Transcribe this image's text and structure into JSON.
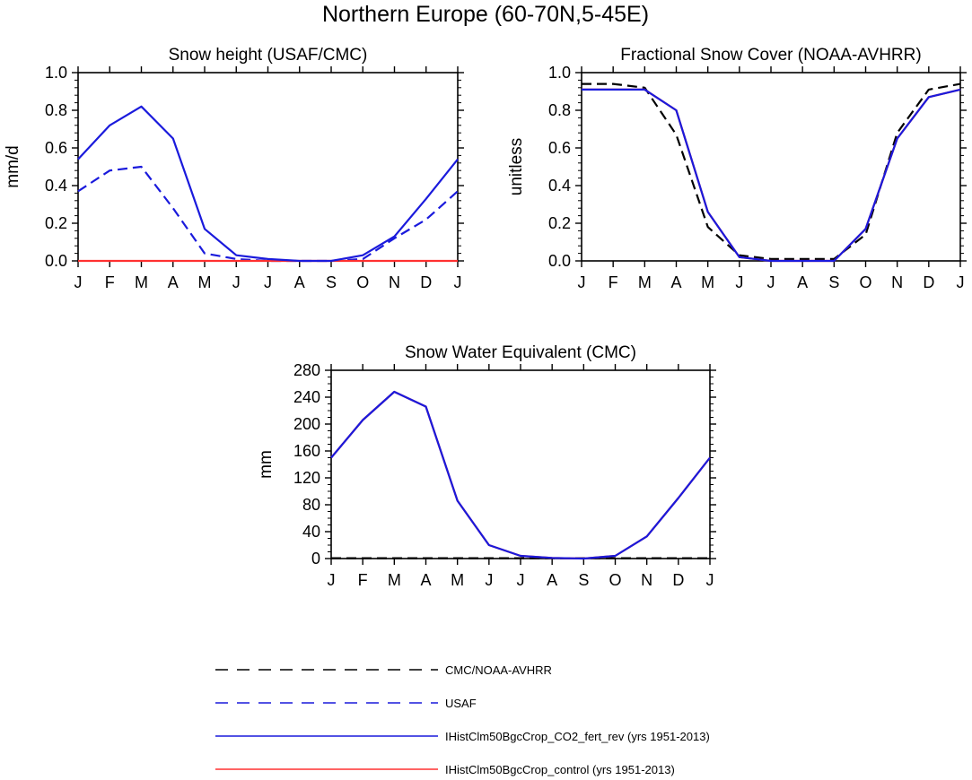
{
  "figure": {
    "title": "Northern Europe (60-70N,5-45E)"
  },
  "series_styles": [
    {
      "name": "CMC/NOAA-AVHRR",
      "color": "#000000",
      "dash": true
    },
    {
      "name": "USAF",
      "color": "#1a1adc",
      "dash": true
    },
    {
      "name": "IHistClm50BgcCrop_CO2_fert_rev (yrs 1951-2013)",
      "color": "#1a1adc",
      "dash": false
    },
    {
      "name": "IHistClm50BgcCrop_control (yrs 1951-2013)",
      "color": "#ff3030",
      "dash": false
    }
  ],
  "chart_data": [
    {
      "type": "line",
      "title": "Snow height (USAF/CMC)",
      "xlabel": "",
      "ylabel": "mm/d",
      "categories": [
        "J",
        "F",
        "M",
        "A",
        "M",
        "J",
        "J",
        "A",
        "S",
        "O",
        "N",
        "D",
        "J"
      ],
      "ylim": [
        0,
        1.0
      ],
      "yticks": [
        "0.0",
        "0.2",
        "0.4",
        "0.6",
        "0.8",
        "1.0"
      ],
      "yminor_count": 4,
      "series": [
        {
          "style": 1,
          "values": [
            0.37,
            0.48,
            0.5,
            0.28,
            0.04,
            0.01,
            0.0,
            0.0,
            0.0,
            0.01,
            0.12,
            0.22,
            0.37
          ]
        },
        {
          "style": 3,
          "values": [
            0.0,
            0.0,
            0.0,
            0.0,
            0.0,
            0.0,
            0.0,
            0.0,
            0.0,
            0.0,
            0.0,
            0.0,
            0.0
          ]
        },
        {
          "style": 2,
          "values": [
            0.54,
            0.72,
            0.82,
            0.65,
            0.17,
            0.03,
            0.01,
            0.0,
            0.0,
            0.03,
            0.13,
            0.33,
            0.54
          ]
        }
      ]
    },
    {
      "type": "line",
      "title": "Fractional Snow Cover (NOAA-AVHRR)",
      "xlabel": "",
      "ylabel": "unitless",
      "categories": [
        "J",
        "F",
        "M",
        "A",
        "M",
        "J",
        "J",
        "A",
        "S",
        "O",
        "N",
        "D",
        "J"
      ],
      "ylim": [
        0,
        1.0
      ],
      "yticks": [
        "0.0",
        "0.2",
        "0.4",
        "0.6",
        "0.8",
        "1.0"
      ],
      "yminor_count": 4,
      "series": [
        {
          "style": 0,
          "values": [
            0.94,
            0.94,
            0.92,
            0.67,
            0.18,
            0.03,
            0.01,
            0.01,
            0.01,
            0.14,
            0.68,
            0.91,
            0.94
          ]
        },
        {
          "style": 3,
          "values": [
            0.91,
            0.91,
            0.91,
            0.8,
            0.26,
            0.02,
            0.0,
            0.0,
            0.0,
            0.17,
            0.65,
            0.87,
            0.91
          ]
        },
        {
          "style": 2,
          "values": [
            0.91,
            0.91,
            0.91,
            0.8,
            0.26,
            0.02,
            0.0,
            0.0,
            0.0,
            0.17,
            0.65,
            0.87,
            0.91
          ]
        }
      ]
    },
    {
      "type": "line",
      "title": "Snow Water Equivalent (CMC)",
      "xlabel": "",
      "ylabel": "mm",
      "categories": [
        "J",
        "F",
        "M",
        "A",
        "M",
        "J",
        "J",
        "A",
        "S",
        "O",
        "N",
        "D",
        "J"
      ],
      "ylim": [
        0,
        280
      ],
      "yticks": [
        "0",
        "40",
        "80",
        "120",
        "160",
        "200",
        "240",
        "280"
      ],
      "yminor_count": 3,
      "series": [
        {
          "style": 0,
          "values": [
            0.5,
            0.5,
            0.5,
            0.5,
            0.5,
            0.5,
            0.5,
            0.5,
            0.5,
            0.5,
            0.5,
            0.5,
            0.5
          ]
        },
        {
          "style": 3,
          "values": [
            150,
            206,
            248,
            226,
            86,
            20,
            4,
            1,
            0,
            4,
            33,
            90,
            150
          ]
        },
        {
          "style": 2,
          "values": [
            150,
            206,
            248,
            226,
            86,
            20,
            4,
            1,
            0,
            4,
            33,
            90,
            150
          ]
        }
      ]
    }
  ]
}
